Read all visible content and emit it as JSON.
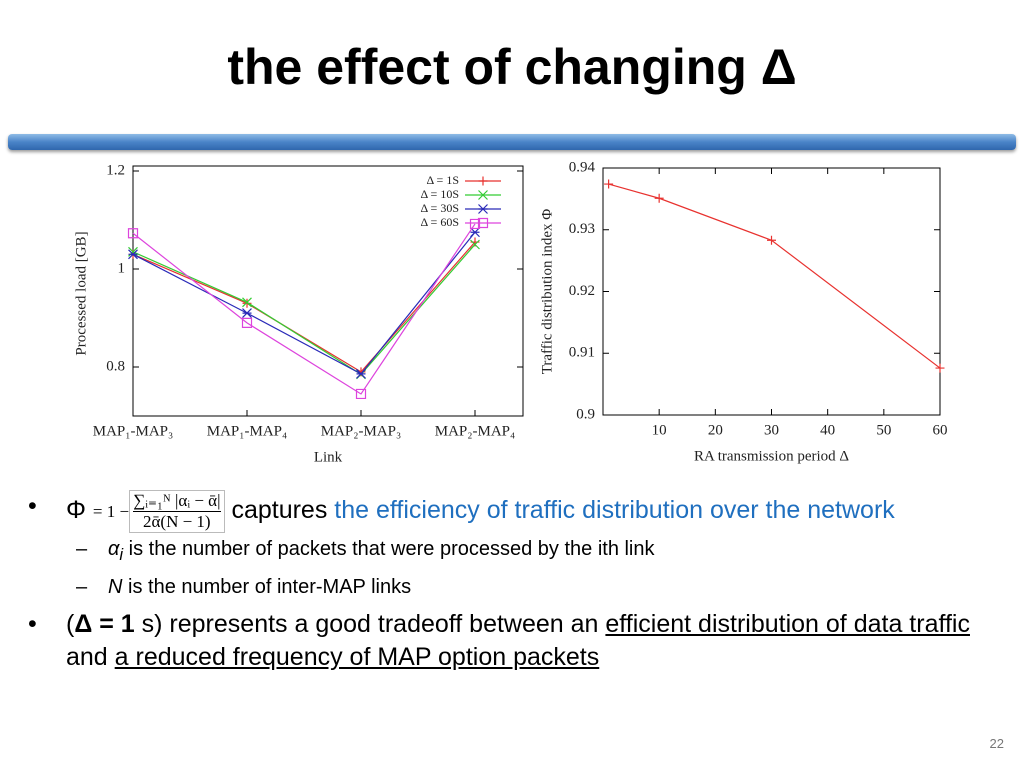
{
  "slide": {
    "title": "the effect of changing Δ",
    "bullets": [
      {
        "symbol": "Φ",
        "formula": {
          "lead": "= 1 −",
          "numerator": "∑ᵢ₌₁ᴺ |αᵢ − ᾱ|",
          "denominator": "2ᾱ(N − 1)"
        },
        "text": "captures",
        "highlight": "the efficiency of traffic distribution over the network",
        "sub": [
          {
            "var": "α",
            "index": "i",
            "text": "is the number of packets that were processed by the ith link"
          },
          {
            "var": "N",
            "text": "is the number of inter-MAP links"
          }
        ]
      },
      {
        "open": "(",
        "bold": "Δ = 1",
        "text": "s) represents a good tradeoff between an",
        "underline1": "efficient distribution of data traffic",
        "and": "and",
        "underline2": "a reduced frequency of MAP option packets"
      }
    ],
    "page_number": "22"
  },
  "chart_data": [
    {
      "type": "line",
      "xlabel": "Link",
      "ylabel": "Processed load [GB]",
      "categories": [
        "MAP₁-MAP₃",
        "MAP₁-MAP₄",
        "MAP₂-MAP₃",
        "MAP₂-MAP₄"
      ],
      "ylim": [
        0.7,
        1.2
      ],
      "yticks": [
        0.8,
        1,
        1.2
      ],
      "legend": "upper right",
      "series": [
        {
          "name": "Δ = 1S",
          "color": "#e8322f",
          "marker": "+",
          "values": [
            1.03,
            0.93,
            0.79,
            1.055
          ]
        },
        {
          "name": "Δ = 10S",
          "color": "#33cc33",
          "marker": "x",
          "values": [
            1.035,
            0.932,
            0.785,
            1.05
          ]
        },
        {
          "name": "Δ = 30S",
          "color": "#2a2ab8",
          "marker": "*",
          "values": [
            1.03,
            0.91,
            0.786,
            1.075
          ]
        },
        {
          "name": "Δ = 60S",
          "color": "#dd44dd",
          "marker": "square",
          "values": [
            1.073,
            0.89,
            0.745,
            1.092
          ]
        }
      ]
    },
    {
      "type": "line",
      "xlabel": "RA transmission period Δ",
      "ylabel": "Traffic distribution index Φ",
      "x": [
        1,
        10,
        30,
        60
      ],
      "xlim": [
        0,
        60
      ],
      "xticks": [
        10,
        20,
        30,
        40,
        50,
        60
      ],
      "ylim": [
        0.9,
        0.94
      ],
      "yticks": [
        0.9,
        0.91,
        0.92,
        0.93,
        0.94
      ],
      "series": [
        {
          "color": "#e8322f",
          "marker": "+",
          "values": [
            0.9374,
            0.9351,
            0.9283,
            0.9076
          ]
        }
      ]
    }
  ]
}
